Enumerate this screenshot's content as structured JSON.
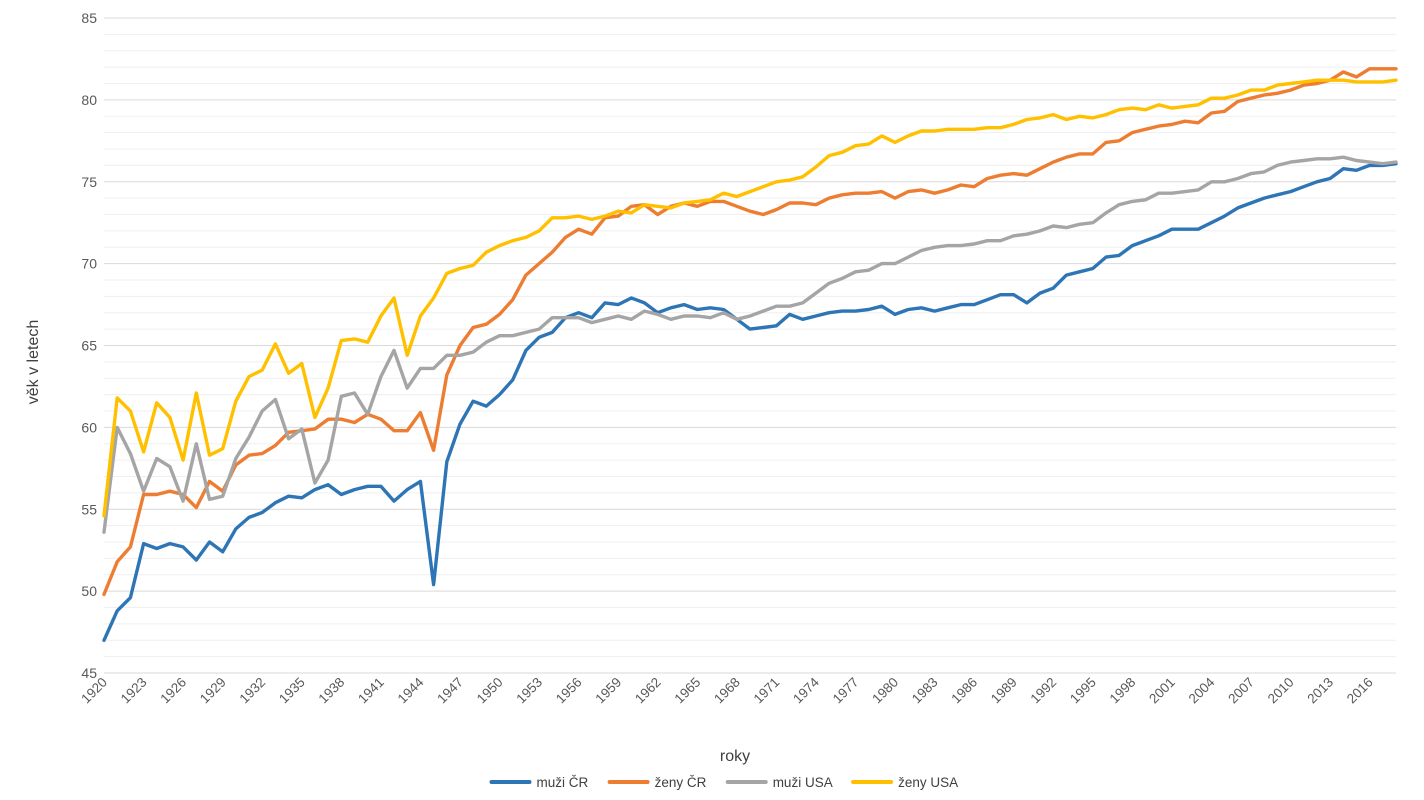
{
  "chart_data": {
    "type": "line",
    "title": "",
    "xlabel": "roky",
    "ylabel": "věk v letech",
    "ylim": [
      45,
      85
    ],
    "y_ticks": [
      45,
      50,
      55,
      60,
      65,
      70,
      75,
      80,
      85
    ],
    "x_tick_labels": [
      "1920",
      "1923",
      "1926",
      "1929",
      "1932",
      "1935",
      "1938",
      "1941",
      "1944",
      "1947",
      "1950",
      "1953",
      "1956",
      "1959",
      "1962",
      "1965",
      "1968",
      "1971",
      "1974",
      "1977",
      "1980",
      "1983",
      "1986",
      "1989",
      "1992",
      "1995",
      "1998",
      "2001",
      "2004",
      "2007",
      "2010",
      "2013",
      "2016"
    ],
    "grid": "horizontal",
    "legend_position": "bottom",
    "x": [
      1920,
      1921,
      1922,
      1923,
      1924,
      1925,
      1926,
      1927,
      1928,
      1929,
      1930,
      1931,
      1932,
      1933,
      1934,
      1935,
      1936,
      1937,
      1938,
      1939,
      1940,
      1941,
      1942,
      1943,
      1944,
      1945,
      1946,
      1947,
      1948,
      1949,
      1950,
      1951,
      1952,
      1953,
      1954,
      1955,
      1956,
      1957,
      1958,
      1959,
      1960,
      1961,
      1962,
      1963,
      1964,
      1965,
      1966,
      1967,
      1968,
      1969,
      1970,
      1971,
      1972,
      1973,
      1974,
      1975,
      1976,
      1977,
      1978,
      1979,
      1980,
      1981,
      1982,
      1983,
      1984,
      1985,
      1986,
      1987,
      1988,
      1989,
      1990,
      1991,
      1992,
      1993,
      1994,
      1995,
      1996,
      1997,
      1998,
      1999,
      2000,
      2001,
      2002,
      2003,
      2004,
      2005,
      2006,
      2007,
      2008,
      2009,
      2010,
      2011,
      2012,
      2013,
      2014,
      2015,
      2016,
      2017,
      2018
    ],
    "series": [
      {
        "name": "muži ČR",
        "color": "#2E75B6",
        "values": [
          47.0,
          48.8,
          49.6,
          52.9,
          52.6,
          52.9,
          52.7,
          51.9,
          53.0,
          52.4,
          53.8,
          54.5,
          54.8,
          55.4,
          55.8,
          55.7,
          56.2,
          56.5,
          55.9,
          56.2,
          56.4,
          56.4,
          55.5,
          56.2,
          56.7,
          50.4,
          57.9,
          60.2,
          61.6,
          61.3,
          62.0,
          62.9,
          64.7,
          65.5,
          65.8,
          66.7,
          67.0,
          66.7,
          67.6,
          67.5,
          67.9,
          67.6,
          67.0,
          67.3,
          67.5,
          67.2,
          67.3,
          67.2,
          66.6,
          66.0,
          66.1,
          66.2,
          66.9,
          66.6,
          66.8,
          67.0,
          67.1,
          67.1,
          67.2,
          67.4,
          66.9,
          67.2,
          67.3,
          67.1,
          67.3,
          67.5,
          67.5,
          67.8,
          68.1,
          68.1,
          67.6,
          68.2,
          68.5,
          69.3,
          69.5,
          69.7,
          70.4,
          70.5,
          71.1,
          71.4,
          71.7,
          72.1,
          72.1,
          72.1,
          72.5,
          72.9,
          73.4,
          73.7,
          74.0,
          74.2,
          74.4,
          74.7,
          75.0,
          75.2,
          75.8,
          75.7,
          76.0,
          76.0,
          76.1
        ]
      },
      {
        "name": "ženy ČR",
        "color": "#ED7D31",
        "values": [
          49.8,
          51.8,
          52.7,
          55.9,
          55.9,
          56.1,
          55.9,
          55.1,
          56.7,
          56.1,
          57.7,
          58.3,
          58.4,
          58.9,
          59.7,
          59.8,
          59.9,
          60.5,
          60.5,
          60.3,
          60.8,
          60.5,
          59.8,
          59.8,
          60.9,
          58.6,
          63.2,
          65.0,
          66.1,
          66.3,
          66.9,
          67.8,
          69.3,
          70.0,
          70.7,
          71.6,
          72.1,
          71.8,
          72.8,
          72.9,
          73.5,
          73.6,
          73.0,
          73.5,
          73.7,
          73.5,
          73.8,
          73.8,
          73.5,
          73.2,
          73.0,
          73.3,
          73.7,
          73.7,
          73.6,
          74.0,
          74.2,
          74.3,
          74.3,
          74.4,
          74.0,
          74.4,
          74.5,
          74.3,
          74.5,
          74.8,
          74.7,
          75.2,
          75.4,
          75.5,
          75.4,
          75.8,
          76.2,
          76.5,
          76.7,
          76.7,
          77.4,
          77.5,
          78.0,
          78.2,
          78.4,
          78.5,
          78.7,
          78.6,
          79.2,
          79.3,
          79.9,
          80.1,
          80.3,
          80.4,
          80.6,
          80.9,
          81.0,
          81.2,
          81.7,
          81.4,
          81.9,
          81.9,
          81.9
        ]
      },
      {
        "name": "muži USA",
        "color": "#A5A5A5",
        "values": [
          53.6,
          60.0,
          58.4,
          56.1,
          58.1,
          57.6,
          55.5,
          59.0,
          55.6,
          55.8,
          58.1,
          59.4,
          61.0,
          61.7,
          59.3,
          59.9,
          56.6,
          58.0,
          61.9,
          62.1,
          60.8,
          63.1,
          64.7,
          62.4,
          63.6,
          63.6,
          64.4,
          64.4,
          64.6,
          65.2,
          65.6,
          65.6,
          65.8,
          66.0,
          66.7,
          66.7,
          66.7,
          66.4,
          66.6,
          66.8,
          66.6,
          67.1,
          66.9,
          66.6,
          66.8,
          66.8,
          66.7,
          67.0,
          66.6,
          66.8,
          67.1,
          67.4,
          67.4,
          67.6,
          68.2,
          68.8,
          69.1,
          69.5,
          69.6,
          70.0,
          70.0,
          70.4,
          70.8,
          71.0,
          71.1,
          71.1,
          71.2,
          71.4,
          71.4,
          71.7,
          71.8,
          72.0,
          72.3,
          72.2,
          72.4,
          72.5,
          73.1,
          73.6,
          73.8,
          73.9,
          74.3,
          74.3,
          74.4,
          74.5,
          75.0,
          75.0,
          75.2,
          75.5,
          75.6,
          76.0,
          76.2,
          76.3,
          76.4,
          76.4,
          76.5,
          76.3,
          76.2,
          76.1,
          76.2
        ]
      },
      {
        "name": "ženy USA",
        "color": "#FFC000",
        "values": [
          54.6,
          61.8,
          61.0,
          58.5,
          61.5,
          60.6,
          58.0,
          62.1,
          58.3,
          58.7,
          61.6,
          63.1,
          63.5,
          65.1,
          63.3,
          63.9,
          60.6,
          62.4,
          65.3,
          65.4,
          65.2,
          66.8,
          67.9,
          64.4,
          66.8,
          67.9,
          69.4,
          69.7,
          69.9,
          70.7,
          71.1,
          71.4,
          71.6,
          72.0,
          72.8,
          72.8,
          72.9,
          72.7,
          72.9,
          73.2,
          73.1,
          73.6,
          73.5,
          73.4,
          73.7,
          73.8,
          73.9,
          74.3,
          74.1,
          74.4,
          74.7,
          75.0,
          75.1,
          75.3,
          75.9,
          76.6,
          76.8,
          77.2,
          77.3,
          77.8,
          77.4,
          77.8,
          78.1,
          78.1,
          78.2,
          78.2,
          78.2,
          78.3,
          78.3,
          78.5,
          78.8,
          78.9,
          79.1,
          78.8,
          79.0,
          78.9,
          79.1,
          79.4,
          79.5,
          79.4,
          79.7,
          79.5,
          79.6,
          79.7,
          80.1,
          80.1,
          80.3,
          80.6,
          80.6,
          80.9,
          81.0,
          81.1,
          81.2,
          81.2,
          81.2,
          81.1,
          81.1,
          81.1,
          81.2
        ]
      }
    ]
  }
}
